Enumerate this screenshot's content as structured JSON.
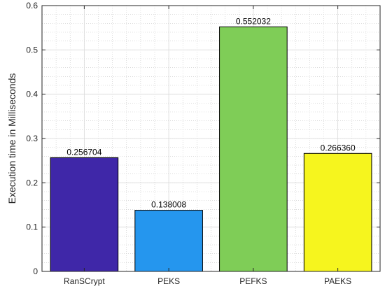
{
  "chart_data": {
    "type": "bar",
    "title": "",
    "xlabel": "",
    "ylabel": "Execution time in Milliseconds",
    "categories": [
      "RanSCrypt",
      "PEKS",
      "PEFKS",
      "PAEKS"
    ],
    "values": [
      0.256704,
      0.138008,
      0.552032,
      0.26636
    ],
    "data_labels": [
      "0.256704",
      "0.138008",
      "0.552032",
      "0.266360"
    ],
    "bar_colors": [
      "#3f27a8",
      "#2596ee",
      "#7fcd57",
      "#f6f51e"
    ],
    "ylim": [
      0,
      0.6
    ],
    "yticks": [
      0,
      0.1,
      0.2,
      0.3,
      0.4,
      0.5,
      0.6
    ],
    "ytick_labels": [
      "0",
      "0.1",
      "0.2",
      "0.3",
      "0.4",
      "0.5",
      "0.6"
    ],
    "grid": true,
    "minor_grid": true,
    "legend": "none"
  }
}
